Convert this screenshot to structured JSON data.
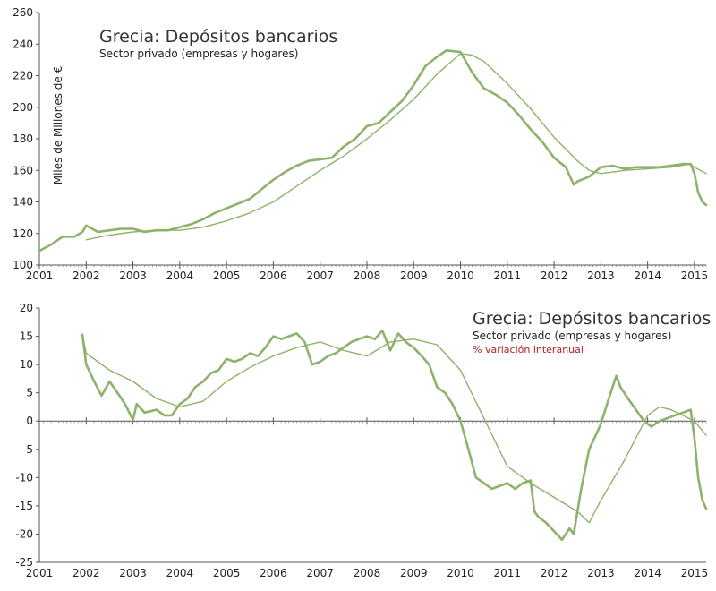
{
  "chart_data": [
    {
      "type": "line",
      "title": "Grecia: Depósitos bancarios",
      "subtitle": "Sector privado (empresas y hogares)",
      "ylabel": "Miles de Millones de €",
      "xlabel": "",
      "xlim": [
        2001,
        2015.25
      ],
      "ylim": [
        100,
        260
      ],
      "xticks": [
        "2001",
        "2002",
        "2003",
        "2004",
        "2005",
        "2006",
        "2007",
        "2008",
        "2009",
        "2010",
        "2011",
        "2012",
        "2013",
        "2014",
        "2015"
      ],
      "yticks": [
        "100",
        "120",
        "140",
        "160",
        "180",
        "200",
        "220",
        "240",
        "260"
      ],
      "grid": false,
      "color": "#8db36a",
      "series": [
        {
          "role": "monthly",
          "x": [
            2001.0,
            2001.25,
            2001.5,
            2001.75,
            2001.92,
            2002.0,
            2002.25,
            2002.5,
            2002.75,
            2003.0,
            2003.25,
            2003.5,
            2003.75,
            2004.0,
            2004.25,
            2004.5,
            2004.75,
            2005.0,
            2005.25,
            2005.5,
            2005.75,
            2006.0,
            2006.25,
            2006.5,
            2006.75,
            2007.0,
            2007.25,
            2007.5,
            2007.75,
            2008.0,
            2008.25,
            2008.5,
            2008.75,
            2009.0,
            2009.25,
            2009.5,
            2009.7,
            2010.0,
            2010.25,
            2010.5,
            2010.75,
            2011.0,
            2011.25,
            2011.5,
            2011.75,
            2012.0,
            2012.25,
            2012.42,
            2012.5,
            2012.75,
            2013.0,
            2013.25,
            2013.5,
            2013.75,
            2014.0,
            2014.25,
            2014.5,
            2014.75,
            2014.92,
            2015.0,
            2015.08,
            2015.17,
            2015.25
          ],
          "y": [
            109,
            113,
            118,
            118,
            121,
            125,
            121,
            122,
            123,
            123,
            121,
            122,
            122,
            124,
            126,
            129,
            133,
            136,
            139,
            142,
            148,
            154,
            159,
            163,
            166,
            167,
            168,
            175,
            180,
            188,
            190,
            197,
            204,
            214,
            226,
            232,
            236,
            235,
            222,
            212,
            208,
            203,
            195,
            186,
            178,
            168,
            162,
            151,
            153,
            156,
            162,
            163,
            161,
            162,
            162,
            162,
            163,
            164,
            164,
            158,
            146,
            140,
            138
          ]
        },
        {
          "role": "trend",
          "x": [
            2002.0,
            2002.5,
            2003.0,
            2003.5,
            2004.0,
            2004.5,
            2005.0,
            2005.5,
            2006.0,
            2006.5,
            2007.0,
            2007.5,
            2008.0,
            2008.5,
            2009.0,
            2009.5,
            2010.0,
            2010.25,
            2010.5,
            2011.0,
            2011.5,
            2012.0,
            2012.5,
            2012.75,
            2013.0,
            2013.5,
            2014.0,
            2014.5,
            2014.9,
            2015.0,
            2015.25
          ],
          "y": [
            116,
            119,
            121,
            122,
            122,
            124,
            128,
            133,
            140,
            150,
            160,
            169,
            180,
            192,
            205,
            221,
            234,
            233,
            229,
            215,
            199,
            181,
            166,
            160,
            158,
            160,
            161,
            162,
            164,
            162,
            158
          ]
        }
      ]
    },
    {
      "type": "line",
      "title": "Grecia: Depósitos bancarios",
      "subtitle": "Sector privado (empresas y hogares)",
      "note": "% variación interanual",
      "xlabel": "",
      "ylabel": "",
      "xlim": [
        2001,
        2015.25
      ],
      "ylim": [
        -25,
        20
      ],
      "xticks": [
        "2001",
        "2002",
        "2003",
        "2004",
        "2005",
        "2006",
        "2007",
        "2008",
        "2009",
        "2010",
        "2011",
        "2012",
        "2013",
        "2014",
        "2015"
      ],
      "yticks": [
        "-25",
        "-20",
        "-15",
        "-10",
        "-5",
        "0",
        "5",
        "10",
        "15",
        "20"
      ],
      "grid": false,
      "color": "#8db36a",
      "series": [
        {
          "role": "monthly",
          "x": [
            2001.92,
            2002.0,
            2002.17,
            2002.33,
            2002.5,
            2002.67,
            2002.83,
            2003.0,
            2003.08,
            2003.25,
            2003.5,
            2003.67,
            2003.83,
            2004.0,
            2004.17,
            2004.33,
            2004.5,
            2004.67,
            2004.83,
            2005.0,
            2005.17,
            2005.33,
            2005.5,
            2005.67,
            2005.83,
            2006.0,
            2006.17,
            2006.33,
            2006.5,
            2006.67,
            2006.83,
            2007.0,
            2007.17,
            2007.33,
            2007.5,
            2007.67,
            2007.83,
            2008.0,
            2008.17,
            2008.33,
            2008.5,
            2008.67,
            2008.83,
            2009.0,
            2009.17,
            2009.33,
            2009.5,
            2009.67,
            2009.83,
            2010.0,
            2010.17,
            2010.33,
            2010.5,
            2010.67,
            2010.83,
            2011.0,
            2011.17,
            2011.33,
            2011.5,
            2011.58,
            2011.67,
            2011.83,
            2012.0,
            2012.17,
            2012.33,
            2012.42,
            2012.58,
            2012.75,
            2012.92,
            2013.0,
            2013.17,
            2013.33,
            2013.42,
            2013.58,
            2013.75,
            2013.92,
            2014.08,
            2014.25,
            2014.42,
            2014.58,
            2014.75,
            2014.92,
            2015.0,
            2015.08,
            2015.17,
            2015.25
          ],
          "y": [
            15.3,
            10,
            7,
            4.5,
            7,
            5,
            3,
            0.2,
            3,
            1.5,
            2,
            1,
            1,
            3,
            4,
            6,
            7,
            8.5,
            9,
            11,
            10.5,
            11,
            12,
            11.5,
            13,
            15,
            14.5,
            15,
            15.5,
            14,
            10,
            10.5,
            11.5,
            12,
            13,
            14,
            14.5,
            15,
            14.5,
            16,
            12.5,
            15.5,
            14,
            13,
            11.5,
            10,
            6,
            5,
            3,
            0,
            -5,
            -10,
            -11,
            -12,
            -11.5,
            -11,
            -12,
            -11,
            -10.5,
            -16,
            -17,
            -18,
            -19.5,
            -21,
            -19,
            -20,
            -12,
            -5,
            -2,
            -0.5,
            4,
            8,
            6,
            4,
            2,
            0,
            -1,
            0,
            0.5,
            1,
            1.5,
            2,
            -3,
            -10,
            -14,
            -15.5
          ]
        },
        {
          "role": "trend",
          "x": [
            2001.92,
            2002.0,
            2002.5,
            2003.0,
            2003.5,
            2004.0,
            2004.5,
            2005.0,
            2005.5,
            2006.0,
            2006.5,
            2007.0,
            2007.5,
            2008.0,
            2008.5,
            2009.0,
            2009.5,
            2010.0,
            2010.5,
            2011.0,
            2011.5,
            2012.0,
            2012.5,
            2012.75,
            2013.0,
            2013.5,
            2014.0,
            2014.25,
            2014.5,
            2015.0,
            2015.25
          ],
          "y": [
            15.3,
            12,
            9,
            7,
            4,
            2.5,
            3.5,
            7,
            9.5,
            11.5,
            13,
            14,
            12.5,
            11.5,
            14,
            14.5,
            13.5,
            9,
            0.5,
            -8,
            -11,
            -13.5,
            -16,
            -18,
            -14,
            -7,
            1,
            2.5,
            2,
            0,
            -2.5
          ]
        }
      ]
    }
  ]
}
